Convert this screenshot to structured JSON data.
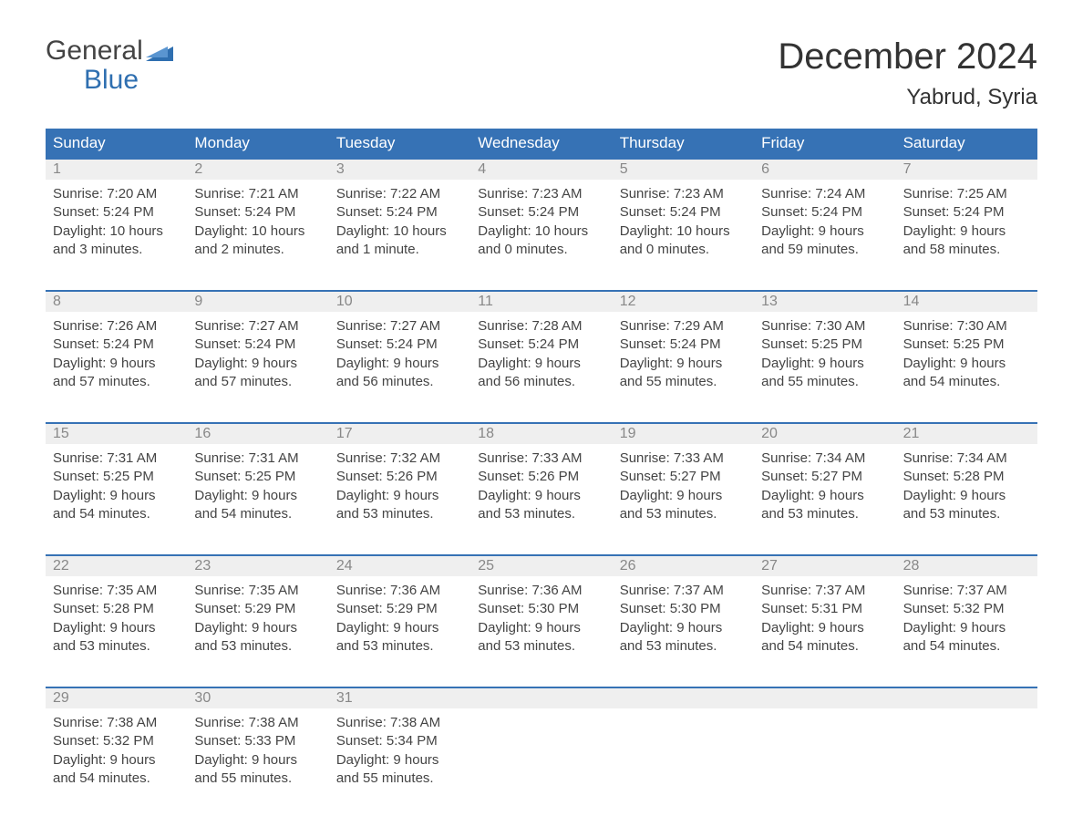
{
  "logo": {
    "top": "General",
    "bottom": "Blue"
  },
  "title": "December 2024",
  "location": "Yabrud, Syria",
  "colors": {
    "header_bg": "#3672b5",
    "header_text": "#ffffff",
    "week_border": "#3672b5",
    "daynum_bg": "#efefef",
    "daynum_text": "#888888",
    "body_text": "#444444",
    "logo_blue": "#2f6fb0"
  },
  "weekdays": [
    "Sunday",
    "Monday",
    "Tuesday",
    "Wednesday",
    "Thursday",
    "Friday",
    "Saturday"
  ],
  "weeks": [
    [
      {
        "n": "1",
        "sr": "Sunrise: 7:20 AM",
        "ss": "Sunset: 5:24 PM",
        "d1": "Daylight: 10 hours",
        "d2": "and 3 minutes."
      },
      {
        "n": "2",
        "sr": "Sunrise: 7:21 AM",
        "ss": "Sunset: 5:24 PM",
        "d1": "Daylight: 10 hours",
        "d2": "and 2 minutes."
      },
      {
        "n": "3",
        "sr": "Sunrise: 7:22 AM",
        "ss": "Sunset: 5:24 PM",
        "d1": "Daylight: 10 hours",
        "d2": "and 1 minute."
      },
      {
        "n": "4",
        "sr": "Sunrise: 7:23 AM",
        "ss": "Sunset: 5:24 PM",
        "d1": "Daylight: 10 hours",
        "d2": "and 0 minutes."
      },
      {
        "n": "5",
        "sr": "Sunrise: 7:23 AM",
        "ss": "Sunset: 5:24 PM",
        "d1": "Daylight: 10 hours",
        "d2": "and 0 minutes."
      },
      {
        "n": "6",
        "sr": "Sunrise: 7:24 AM",
        "ss": "Sunset: 5:24 PM",
        "d1": "Daylight: 9 hours",
        "d2": "and 59 minutes."
      },
      {
        "n": "7",
        "sr": "Sunrise: 7:25 AM",
        "ss": "Sunset: 5:24 PM",
        "d1": "Daylight: 9 hours",
        "d2": "and 58 minutes."
      }
    ],
    [
      {
        "n": "8",
        "sr": "Sunrise: 7:26 AM",
        "ss": "Sunset: 5:24 PM",
        "d1": "Daylight: 9 hours",
        "d2": "and 57 minutes."
      },
      {
        "n": "9",
        "sr": "Sunrise: 7:27 AM",
        "ss": "Sunset: 5:24 PM",
        "d1": "Daylight: 9 hours",
        "d2": "and 57 minutes."
      },
      {
        "n": "10",
        "sr": "Sunrise: 7:27 AM",
        "ss": "Sunset: 5:24 PM",
        "d1": "Daylight: 9 hours",
        "d2": "and 56 minutes."
      },
      {
        "n": "11",
        "sr": "Sunrise: 7:28 AM",
        "ss": "Sunset: 5:24 PM",
        "d1": "Daylight: 9 hours",
        "d2": "and 56 minutes."
      },
      {
        "n": "12",
        "sr": "Sunrise: 7:29 AM",
        "ss": "Sunset: 5:24 PM",
        "d1": "Daylight: 9 hours",
        "d2": "and 55 minutes."
      },
      {
        "n": "13",
        "sr": "Sunrise: 7:30 AM",
        "ss": "Sunset: 5:25 PM",
        "d1": "Daylight: 9 hours",
        "d2": "and 55 minutes."
      },
      {
        "n": "14",
        "sr": "Sunrise: 7:30 AM",
        "ss": "Sunset: 5:25 PM",
        "d1": "Daylight: 9 hours",
        "d2": "and 54 minutes."
      }
    ],
    [
      {
        "n": "15",
        "sr": "Sunrise: 7:31 AM",
        "ss": "Sunset: 5:25 PM",
        "d1": "Daylight: 9 hours",
        "d2": "and 54 minutes."
      },
      {
        "n": "16",
        "sr": "Sunrise: 7:31 AM",
        "ss": "Sunset: 5:25 PM",
        "d1": "Daylight: 9 hours",
        "d2": "and 54 minutes."
      },
      {
        "n": "17",
        "sr": "Sunrise: 7:32 AM",
        "ss": "Sunset: 5:26 PM",
        "d1": "Daylight: 9 hours",
        "d2": "and 53 minutes."
      },
      {
        "n": "18",
        "sr": "Sunrise: 7:33 AM",
        "ss": "Sunset: 5:26 PM",
        "d1": "Daylight: 9 hours",
        "d2": "and 53 minutes."
      },
      {
        "n": "19",
        "sr": "Sunrise: 7:33 AM",
        "ss": "Sunset: 5:27 PM",
        "d1": "Daylight: 9 hours",
        "d2": "and 53 minutes."
      },
      {
        "n": "20",
        "sr": "Sunrise: 7:34 AM",
        "ss": "Sunset: 5:27 PM",
        "d1": "Daylight: 9 hours",
        "d2": "and 53 minutes."
      },
      {
        "n": "21",
        "sr": "Sunrise: 7:34 AM",
        "ss": "Sunset: 5:28 PM",
        "d1": "Daylight: 9 hours",
        "d2": "and 53 minutes."
      }
    ],
    [
      {
        "n": "22",
        "sr": "Sunrise: 7:35 AM",
        "ss": "Sunset: 5:28 PM",
        "d1": "Daylight: 9 hours",
        "d2": "and 53 minutes."
      },
      {
        "n": "23",
        "sr": "Sunrise: 7:35 AM",
        "ss": "Sunset: 5:29 PM",
        "d1": "Daylight: 9 hours",
        "d2": "and 53 minutes."
      },
      {
        "n": "24",
        "sr": "Sunrise: 7:36 AM",
        "ss": "Sunset: 5:29 PM",
        "d1": "Daylight: 9 hours",
        "d2": "and 53 minutes."
      },
      {
        "n": "25",
        "sr": "Sunrise: 7:36 AM",
        "ss": "Sunset: 5:30 PM",
        "d1": "Daylight: 9 hours",
        "d2": "and 53 minutes."
      },
      {
        "n": "26",
        "sr": "Sunrise: 7:37 AM",
        "ss": "Sunset: 5:30 PM",
        "d1": "Daylight: 9 hours",
        "d2": "and 53 minutes."
      },
      {
        "n": "27",
        "sr": "Sunrise: 7:37 AM",
        "ss": "Sunset: 5:31 PM",
        "d1": "Daylight: 9 hours",
        "d2": "and 54 minutes."
      },
      {
        "n": "28",
        "sr": "Sunrise: 7:37 AM",
        "ss": "Sunset: 5:32 PM",
        "d1": "Daylight: 9 hours",
        "d2": "and 54 minutes."
      }
    ],
    [
      {
        "n": "29",
        "sr": "Sunrise: 7:38 AM",
        "ss": "Sunset: 5:32 PM",
        "d1": "Daylight: 9 hours",
        "d2": "and 54 minutes."
      },
      {
        "n": "30",
        "sr": "Sunrise: 7:38 AM",
        "ss": "Sunset: 5:33 PM",
        "d1": "Daylight: 9 hours",
        "d2": "and 55 minutes."
      },
      {
        "n": "31",
        "sr": "Sunrise: 7:38 AM",
        "ss": "Sunset: 5:34 PM",
        "d1": "Daylight: 9 hours",
        "d2": "and 55 minutes."
      },
      null,
      null,
      null,
      null
    ]
  ]
}
